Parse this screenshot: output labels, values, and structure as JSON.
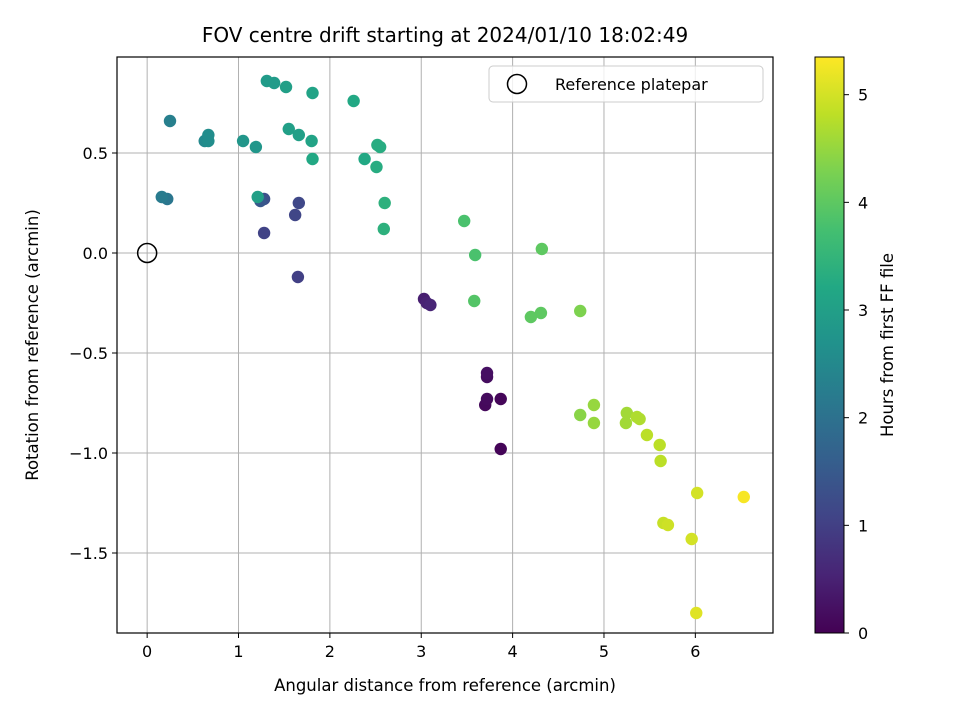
{
  "chart_data": {
    "type": "scatter",
    "title": "FOV centre drift starting at 2024/01/10 18:02:49",
    "xlabel": "Angular distance from reference (arcmin)",
    "ylabel": "Rotation from reference (arcmin)",
    "xlim": [
      -0.33,
      6.85
    ],
    "ylim": [
      -1.9,
      0.98
    ],
    "xticks": [
      0,
      1,
      2,
      3,
      4,
      5,
      6
    ],
    "xtick_labels": [
      "0",
      "1",
      "2",
      "3",
      "4",
      "5",
      "6"
    ],
    "yticks": [
      -1.5,
      -1.0,
      -0.5,
      0.0,
      0.5
    ],
    "ytick_labels": [
      "−1.5",
      "−1.0",
      "−0.5",
      "0.0",
      "0.5"
    ],
    "grid": true,
    "legend": {
      "label": "Reference platepar",
      "location": "upper-right"
    },
    "reference_point": {
      "x": 0.0,
      "y": 0.0
    },
    "colorbar": {
      "label": "Hours from first FF file",
      "colormap": "viridis",
      "range": [
        0,
        5.35
      ],
      "ticks": [
        0,
        1,
        2,
        3,
        4,
        5
      ],
      "tick_labels": [
        "0",
        "1",
        "2",
        "3",
        "4",
        "5"
      ]
    },
    "points": [
      {
        "x": 3.87,
        "y": -0.98,
        "c": 0.05
      },
      {
        "x": 3.87,
        "y": -0.73,
        "c": 0.08
      },
      {
        "x": 3.7,
        "y": -0.76,
        "c": 0.12
      },
      {
        "x": 3.72,
        "y": -0.73,
        "c": 0.15
      },
      {
        "x": 3.72,
        "y": -0.62,
        "c": 0.18
      },
      {
        "x": 3.72,
        "y": -0.6,
        "c": 0.22
      },
      {
        "x": 3.03,
        "y": -0.23,
        "c": 0.45
      },
      {
        "x": 3.06,
        "y": -0.25,
        "c": 0.5
      },
      {
        "x": 3.1,
        "y": -0.26,
        "c": 0.55
      },
      {
        "x": 1.65,
        "y": -0.12,
        "c": 1.0
      },
      {
        "x": 1.28,
        "y": 0.1,
        "c": 1.05
      },
      {
        "x": 1.62,
        "y": 0.19,
        "c": 1.1
      },
      {
        "x": 1.66,
        "y": 0.25,
        "c": 1.15
      },
      {
        "x": 1.28,
        "y": 0.27,
        "c": 1.3
      },
      {
        "x": 1.24,
        "y": 0.26,
        "c": 1.45
      },
      {
        "x": 0.22,
        "y": 0.27,
        "c": 2.1
      },
      {
        "x": 0.16,
        "y": 0.28,
        "c": 2.2
      },
      {
        "x": 0.25,
        "y": 0.66,
        "c": 2.3
      },
      {
        "x": 0.63,
        "y": 0.56,
        "c": 2.5
      },
      {
        "x": 0.67,
        "y": 0.56,
        "c": 2.6
      },
      {
        "x": 0.67,
        "y": 0.59,
        "c": 2.6
      },
      {
        "x": 1.05,
        "y": 0.56,
        "c": 2.8
      },
      {
        "x": 1.19,
        "y": 0.53,
        "c": 2.8
      },
      {
        "x": 1.21,
        "y": 0.28,
        "c": 3.0
      },
      {
        "x": 1.31,
        "y": 0.86,
        "c": 2.9
      },
      {
        "x": 1.39,
        "y": 0.85,
        "c": 2.9
      },
      {
        "x": 1.52,
        "y": 0.83,
        "c": 3.0
      },
      {
        "x": 1.55,
        "y": 0.62,
        "c": 3.0
      },
      {
        "x": 1.66,
        "y": 0.59,
        "c": 3.0
      },
      {
        "x": 1.81,
        "y": 0.8,
        "c": 3.1
      },
      {
        "x": 1.8,
        "y": 0.56,
        "c": 3.1
      },
      {
        "x": 1.81,
        "y": 0.47,
        "c": 3.2
      },
      {
        "x": 2.26,
        "y": 0.76,
        "c": 3.2
      },
      {
        "x": 2.38,
        "y": 0.47,
        "c": 3.2
      },
      {
        "x": 2.52,
        "y": 0.54,
        "c": 3.3
      },
      {
        "x": 2.55,
        "y": 0.53,
        "c": 3.3
      },
      {
        "x": 2.51,
        "y": 0.43,
        "c": 3.3
      },
      {
        "x": 2.6,
        "y": 0.25,
        "c": 3.4
      },
      {
        "x": 2.59,
        "y": 0.12,
        "c": 3.4
      },
      {
        "x": 3.47,
        "y": 0.16,
        "c": 3.8
      },
      {
        "x": 3.59,
        "y": -0.01,
        "c": 3.8
      },
      {
        "x": 3.58,
        "y": -0.24,
        "c": 3.9
      },
      {
        "x": 4.2,
        "y": -0.32,
        "c": 4.0
      },
      {
        "x": 4.31,
        "y": -0.3,
        "c": 4.0
      },
      {
        "x": 4.32,
        "y": 0.02,
        "c": 4.0
      },
      {
        "x": 4.74,
        "y": -0.29,
        "c": 4.3
      },
      {
        "x": 4.74,
        "y": -0.81,
        "c": 4.4
      },
      {
        "x": 4.89,
        "y": -0.85,
        "c": 4.5
      },
      {
        "x": 4.89,
        "y": -0.76,
        "c": 4.5
      },
      {
        "x": 5.24,
        "y": -0.85,
        "c": 4.6
      },
      {
        "x": 5.25,
        "y": -0.8,
        "c": 4.6
      },
      {
        "x": 5.36,
        "y": -0.82,
        "c": 4.7
      },
      {
        "x": 5.39,
        "y": -0.83,
        "c": 4.7
      },
      {
        "x": 5.47,
        "y": -0.91,
        "c": 4.8
      },
      {
        "x": 5.61,
        "y": -0.96,
        "c": 4.8
      },
      {
        "x": 5.62,
        "y": -1.04,
        "c": 4.8
      },
      {
        "x": 5.65,
        "y": -1.35,
        "c": 4.9
      },
      {
        "x": 5.7,
        "y": -1.36,
        "c": 4.95
      },
      {
        "x": 5.96,
        "y": -1.43,
        "c": 5.0
      },
      {
        "x": 6.02,
        "y": -1.2,
        "c": 5.0
      },
      {
        "x": 6.01,
        "y": -1.8,
        "c": 5.1
      },
      {
        "x": 6.53,
        "y": -1.22,
        "c": 5.3
      }
    ]
  }
}
